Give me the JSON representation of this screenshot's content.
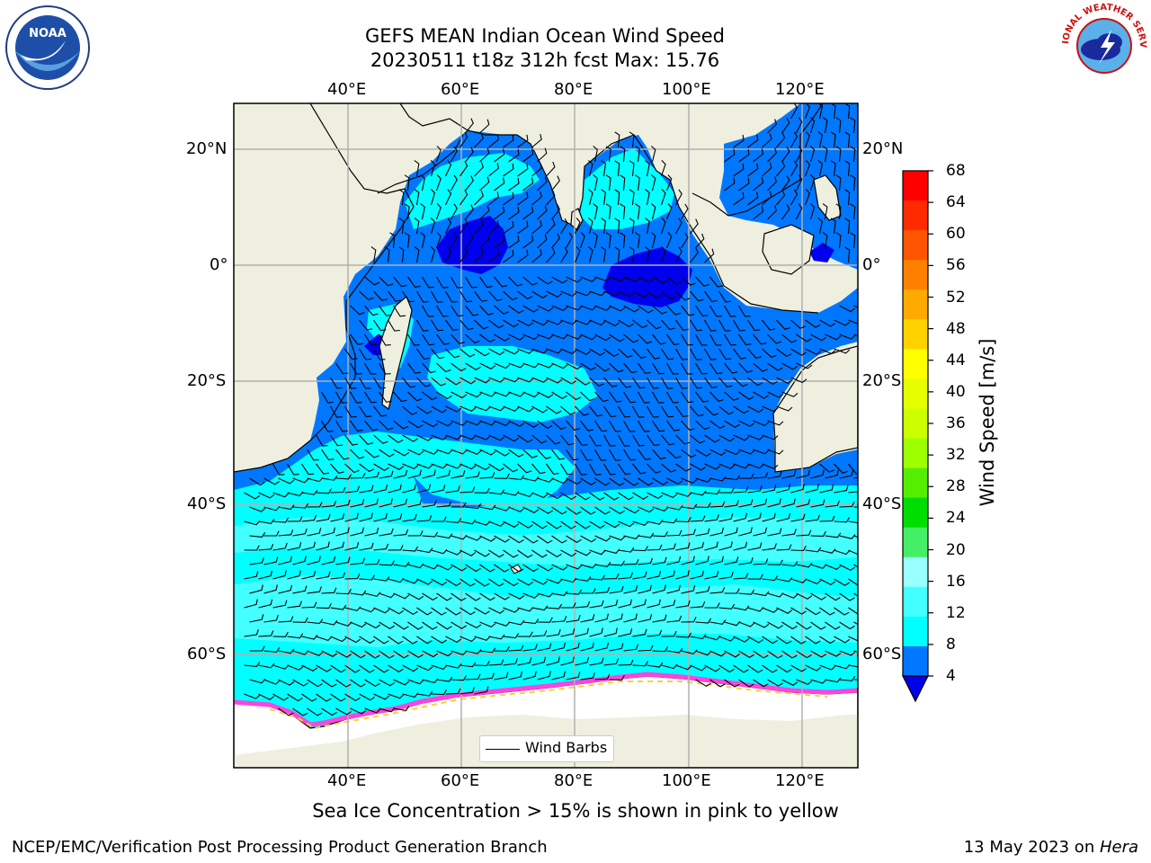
{
  "title": {
    "line1": "GEFS MEAN Indian Ocean Wind Speed",
    "line2": "20230511 t18z 312h fcst   Max: 15.76"
  },
  "logos": {
    "noaa": "NOAA",
    "nws": "NATIONAL WEATHER SERVICE"
  },
  "map": {
    "lon_range": [
      20,
      130
    ],
    "lat_range": [
      -74,
      28
    ],
    "lon_ticks": [
      "40°E",
      "60°E",
      "80°E",
      "100°E",
      "120°E"
    ],
    "lat_ticks_left": [
      "20°N",
      "0°",
      "20°S",
      "40°S",
      "60°S"
    ],
    "lat_ticks_right": [
      "20°N",
      "0°",
      "20°S",
      "40°S",
      "60°S"
    ],
    "legend_label": "Wind Barbs",
    "land_color": "#efefdf",
    "ice_color": "#ff44dd"
  },
  "colorbar": {
    "label": "Wind Speed [m/s]",
    "ticks": [
      "68",
      "64",
      "60",
      "56",
      "52",
      "48",
      "44",
      "40",
      "36",
      "32",
      "28",
      "24",
      "20",
      "16",
      "12",
      "8",
      "4"
    ],
    "colors": [
      "#ff0000",
      "#ff2a00",
      "#ff5500",
      "#ff8000",
      "#ffaa00",
      "#ffd200",
      "#ffff00",
      "#e6ff00",
      "#ccff00",
      "#9eff00",
      "#55ee00",
      "#00dd00",
      "#44ee66",
      "#99ffff",
      "#44ffff",
      "#00ffff",
      "#0077ff"
    ],
    "under_color": "#0000ee"
  },
  "footer": {
    "note": "Sea Ice Concentration > 15% is shown in pink to yellow",
    "left": "NCEP/EMC/Verification Post Processing Product Generation Branch",
    "date": "13 May 2023 on ",
    "host": "Hera"
  }
}
